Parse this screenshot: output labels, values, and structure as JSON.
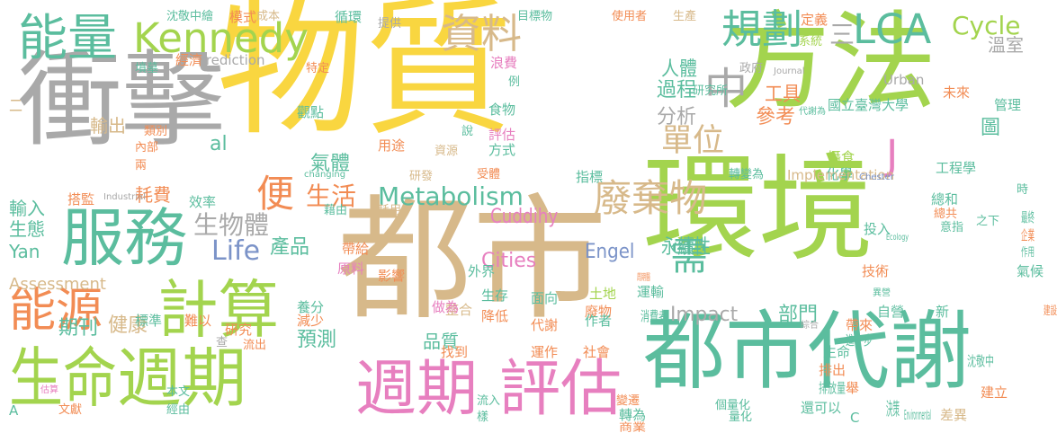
{
  "palette": {
    "yellow": "#f9d640",
    "green": "#a3d44e",
    "grey": "#a9a9a9",
    "tan": "#d7b98a",
    "teal": "#5bbd9e",
    "orange": "#f28c54",
    "pink": "#e77fbf",
    "blue": "#7b93c8"
  },
  "words": [
    "物質",
    "方法",
    "衝擊",
    "環境",
    "都市",
    "都市代謝",
    "生命",
    "週期",
    "週期",
    "評估",
    "計算",
    "服務",
    "能源",
    "能量",
    "Kennedy",
    "規劃",
    "LCA",
    "Cycle",
    "資料",
    "中",
    "單位",
    "Metabolism",
    "廢棄物",
    "便",
    "J",
    "生活",
    "氣體",
    "Life",
    "產品",
    "需",
    "Impact",
    "Assessment",
    "Cities",
    "Engel",
    "永續性",
    "部門",
    "過程",
    "工具",
    "參考",
    "分析",
    "期刊",
    "健康",
    "預測",
    "品質",
    "Cuddihy",
    "人體",
    "生物體",
    "耗費",
    "al",
    "輸出",
    "三",
    "溫室",
    "國立臺灣大學",
    "未來",
    "管理",
    "圖",
    "攝食",
    "化學",
    "研究所",
    "政府",
    "Urban",
    "Journal",
    "沈敬中繪",
    "模式",
    "成本",
    "循環",
    "提供",
    "目標物",
    "使用者",
    "生產",
    "定義",
    "系統",
    "Prediction",
    "墳墓",
    "經濟",
    "特定",
    "浪費",
    "例",
    "食物",
    "說",
    "評估",
    "方式",
    "資源",
    "用途",
    "觀點",
    "類別",
    "內部",
    "兩",
    "研發",
    "受體",
    "指標",
    "changing",
    "搭監",
    "Industrial",
    "輸入",
    "生態",
    "Yan",
    "效率",
    "藉由",
    "耗用",
    "帶給",
    "原料",
    "影響",
    "外界",
    "生存",
    "面向",
    "土地",
    "廢物",
    "整合",
    "做為",
    "降低",
    "代謝",
    "作者",
    "運作",
    "社會",
    "找到",
    "養分",
    "減少",
    "難以",
    "標準",
    "查",
    "流出",
    "Implementation",
    "Chester",
    "轉變為",
    "總和",
    "工程學",
    "總共",
    "意指",
    "之下",
    "時",
    "最終",
    "企業",
    "作用",
    "投入",
    "技術",
    "氣候",
    "Ecology",
    "異營",
    "自營",
    "運輸",
    "消費者",
    "綜合",
    "帶來",
    "進一步",
    "新",
    "建設",
    "生命",
    "排出",
    "沈敬中",
    "個量化",
    "量化",
    "排放量",
    "還可以",
    "C",
    "決策",
    "Environmental",
    "差異",
    "建立",
    "轉為",
    "商業",
    "變遷",
    "流入",
    "樣",
    "研究",
    "本文",
    "經由",
    "文獻",
    "估算",
    "A",
    "二",
    "舉",
    "周期醫",
    "代謝為"
  ]
}
